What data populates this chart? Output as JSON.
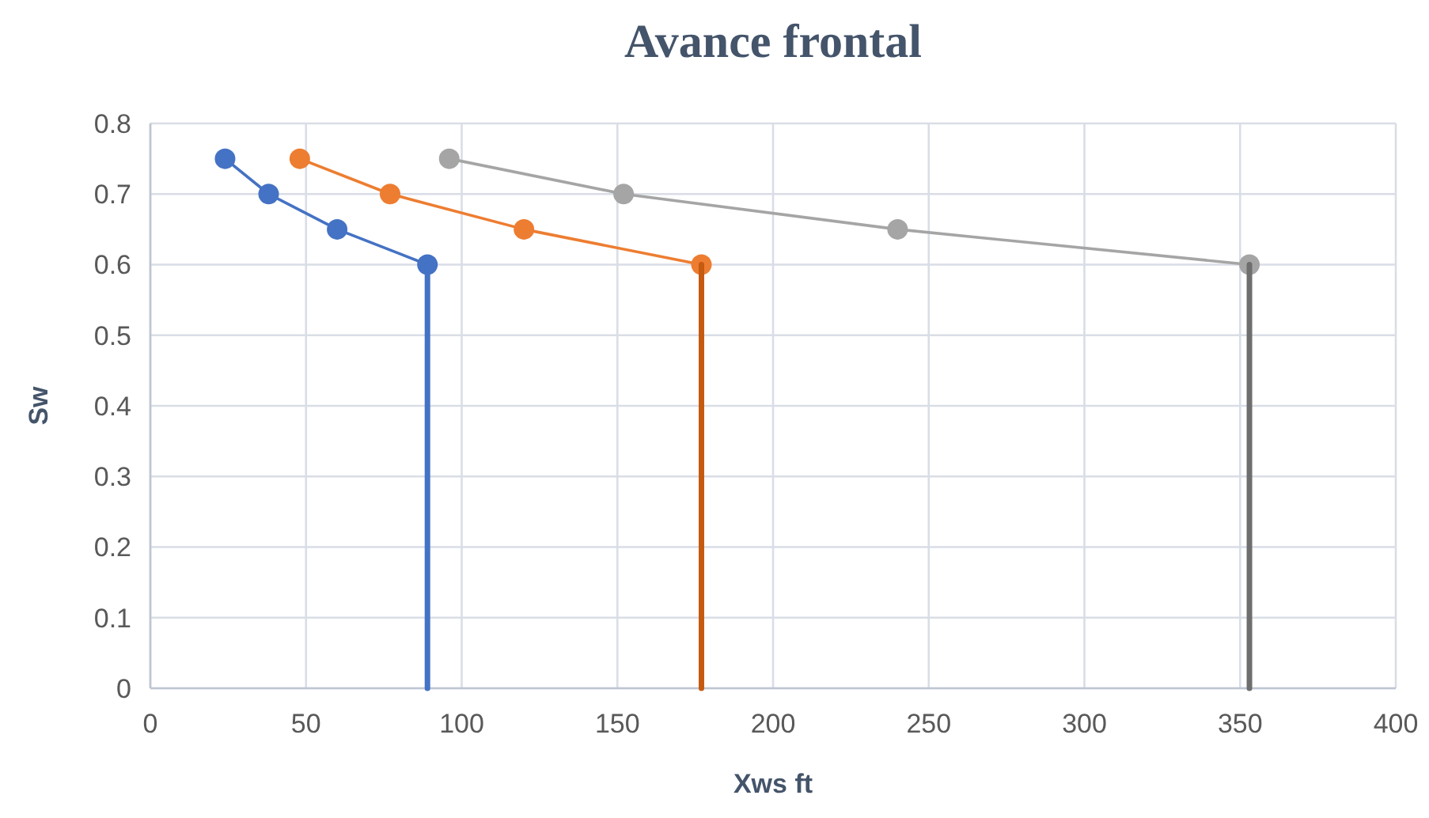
{
  "chart_data": {
    "type": "line",
    "title": "Avance frontal",
    "xlabel": "Xws ft",
    "ylabel": "Sw",
    "xlim": [
      0,
      400
    ],
    "xticks": [
      0,
      50,
      100,
      150,
      200,
      250,
      300,
      350,
      400
    ],
    "ylim": [
      0,
      0.8
    ],
    "yticks": [
      0,
      0.1,
      0.2,
      0.3,
      0.4,
      0.5,
      0.6,
      0.7,
      0.8
    ],
    "grid": true,
    "marker": "circle",
    "series": [
      {
        "color": "#4472c4",
        "x": [
          24,
          38,
          60,
          89
        ],
        "values": [
          0.75,
          0.7,
          0.65,
          0.6
        ]
      },
      {
        "color": "#ed7d31",
        "x": [
          48,
          77,
          120,
          177
        ],
        "values": [
          0.75,
          0.7,
          0.65,
          0.6
        ]
      },
      {
        "color": "#a5a5a5",
        "x": [
          96,
          152,
          240,
          353
        ],
        "values": [
          0.75,
          0.7,
          0.65,
          0.6
        ]
      },
      {
        "color": "#4472c4",
        "marker": "none",
        "x": [
          89,
          89
        ],
        "values": [
          0.6,
          0
        ]
      },
      {
        "color": "#c55a11",
        "marker": "none",
        "x": [
          177,
          177
        ],
        "values": [
          0.6,
          0
        ]
      },
      {
        "color": "#6e6e6e",
        "marker": "none",
        "x": [
          353,
          353
        ],
        "values": [
          0.6,
          0
        ]
      }
    ]
  }
}
